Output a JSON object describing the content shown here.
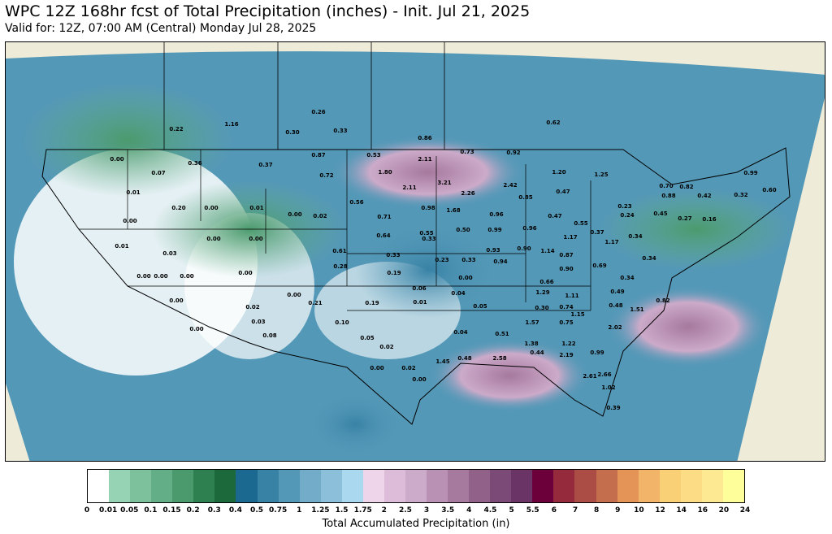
{
  "title": "WPC 12Z 168hr fcst of Total Precipitation (inches) - Init. Jul 21, 2025",
  "subtitle": "Valid for: 12Z, 07:00 AM (Central) Monday Jul 28, 2025",
  "colorbar": {
    "label": "Total Accumulated Precipitation (in)",
    "ticks": [
      "0",
      "0.01",
      "0.05",
      "0.1",
      "0.15",
      "0.2",
      "0.3",
      "0.4",
      "0.5",
      "0.75",
      "1",
      "1.25",
      "1.5",
      "1.75",
      "2",
      "2.5",
      "3",
      "3.5",
      "4",
      "4.5",
      "5",
      "5.5",
      "6",
      "7",
      "8",
      "9",
      "10",
      "12",
      "14",
      "16",
      "20",
      "24"
    ],
    "colors": [
      "#ffffff",
      "#96d3b4",
      "#7cc09c",
      "#63ae87",
      "#4b9a6d",
      "#2f8050",
      "#1c6a3c",
      "#1b6990",
      "#3882a6",
      "#5498b7",
      "#72acc9",
      "#8cc0da",
      "#a9d8ef",
      "#eed5ea",
      "#dcbcd8",
      "#ccaac9",
      "#b991b4",
      "#a6799f",
      "#92618a",
      "#7c4a76",
      "#6a3566",
      "#6c003a",
      "#952a3c",
      "#ab4d44",
      "#c46e4e",
      "#e49456",
      "#f2b468",
      "#fad077",
      "#fcdc85",
      "#fde992",
      "#feff9b"
    ]
  },
  "map_values": [
    "1.16",
    "0.26",
    "0.30",
    "0.33",
    "0.86",
    "0.62",
    "0.22",
    "0.73",
    "0.92",
    "0.00",
    "0.37",
    "0.87",
    "0.53",
    "2.11",
    "1.25",
    "0.07",
    "0.36",
    "0.72",
    "1.80",
    "3.21",
    "2.42",
    "1.20",
    "0.70",
    "0.88",
    "0.99",
    "0.01",
    "2.11",
    "2.26",
    "0.85",
    "0.47",
    "0.82",
    "0.42",
    "0.32",
    "0.60",
    "0.20",
    "0.00",
    "0.01",
    "0.56",
    "0.98",
    "1.68",
    "0.96",
    "0.47",
    "0.23",
    "0.24",
    "0.45",
    "0.27",
    "0.16",
    "0.00",
    "0.00",
    "0.02",
    "0.71",
    "0.55",
    "0.50",
    "0.99",
    "0.96",
    "0.55",
    "0.37",
    "0.34",
    "0.00",
    "0.00",
    "0.64",
    "0.33",
    "0.93",
    "0.90",
    "1.17",
    "1.17",
    "0.01",
    "0.03",
    "0.61",
    "0.33",
    "0.23",
    "0.33",
    "0.94",
    "1.14",
    "0.87",
    "0.69",
    "0.34",
    "0.00",
    "0.00",
    "0.00",
    "0.28",
    "0.19",
    "0.00",
    "0.90",
    "0.34",
    "0.00",
    "0.06",
    "0.66",
    "0.49",
    "0.00",
    "0.21",
    "0.19",
    "0.01",
    "0.04",
    "1.29",
    "1.11",
    "0.82",
    "0.02",
    "0.05",
    "0.30",
    "0.74",
    "0.48",
    "1.51",
    "0.00",
    "0.03",
    "0.10",
    "0.04",
    "1.57",
    "0.75",
    "1.15",
    "2.02",
    "0.00",
    "0.08",
    "0.05",
    "0.51",
    "1.38",
    "1.22",
    "0.02",
    "0.02",
    "0.48",
    "1.45",
    "0.44",
    "2.19",
    "0.99",
    "0.00",
    "0.00",
    "2.58",
    "2.61",
    "2.66",
    "1.02",
    "0.39"
  ],
  "colors": {
    "land_outside": "#efebd9",
    "border": "#000000"
  }
}
